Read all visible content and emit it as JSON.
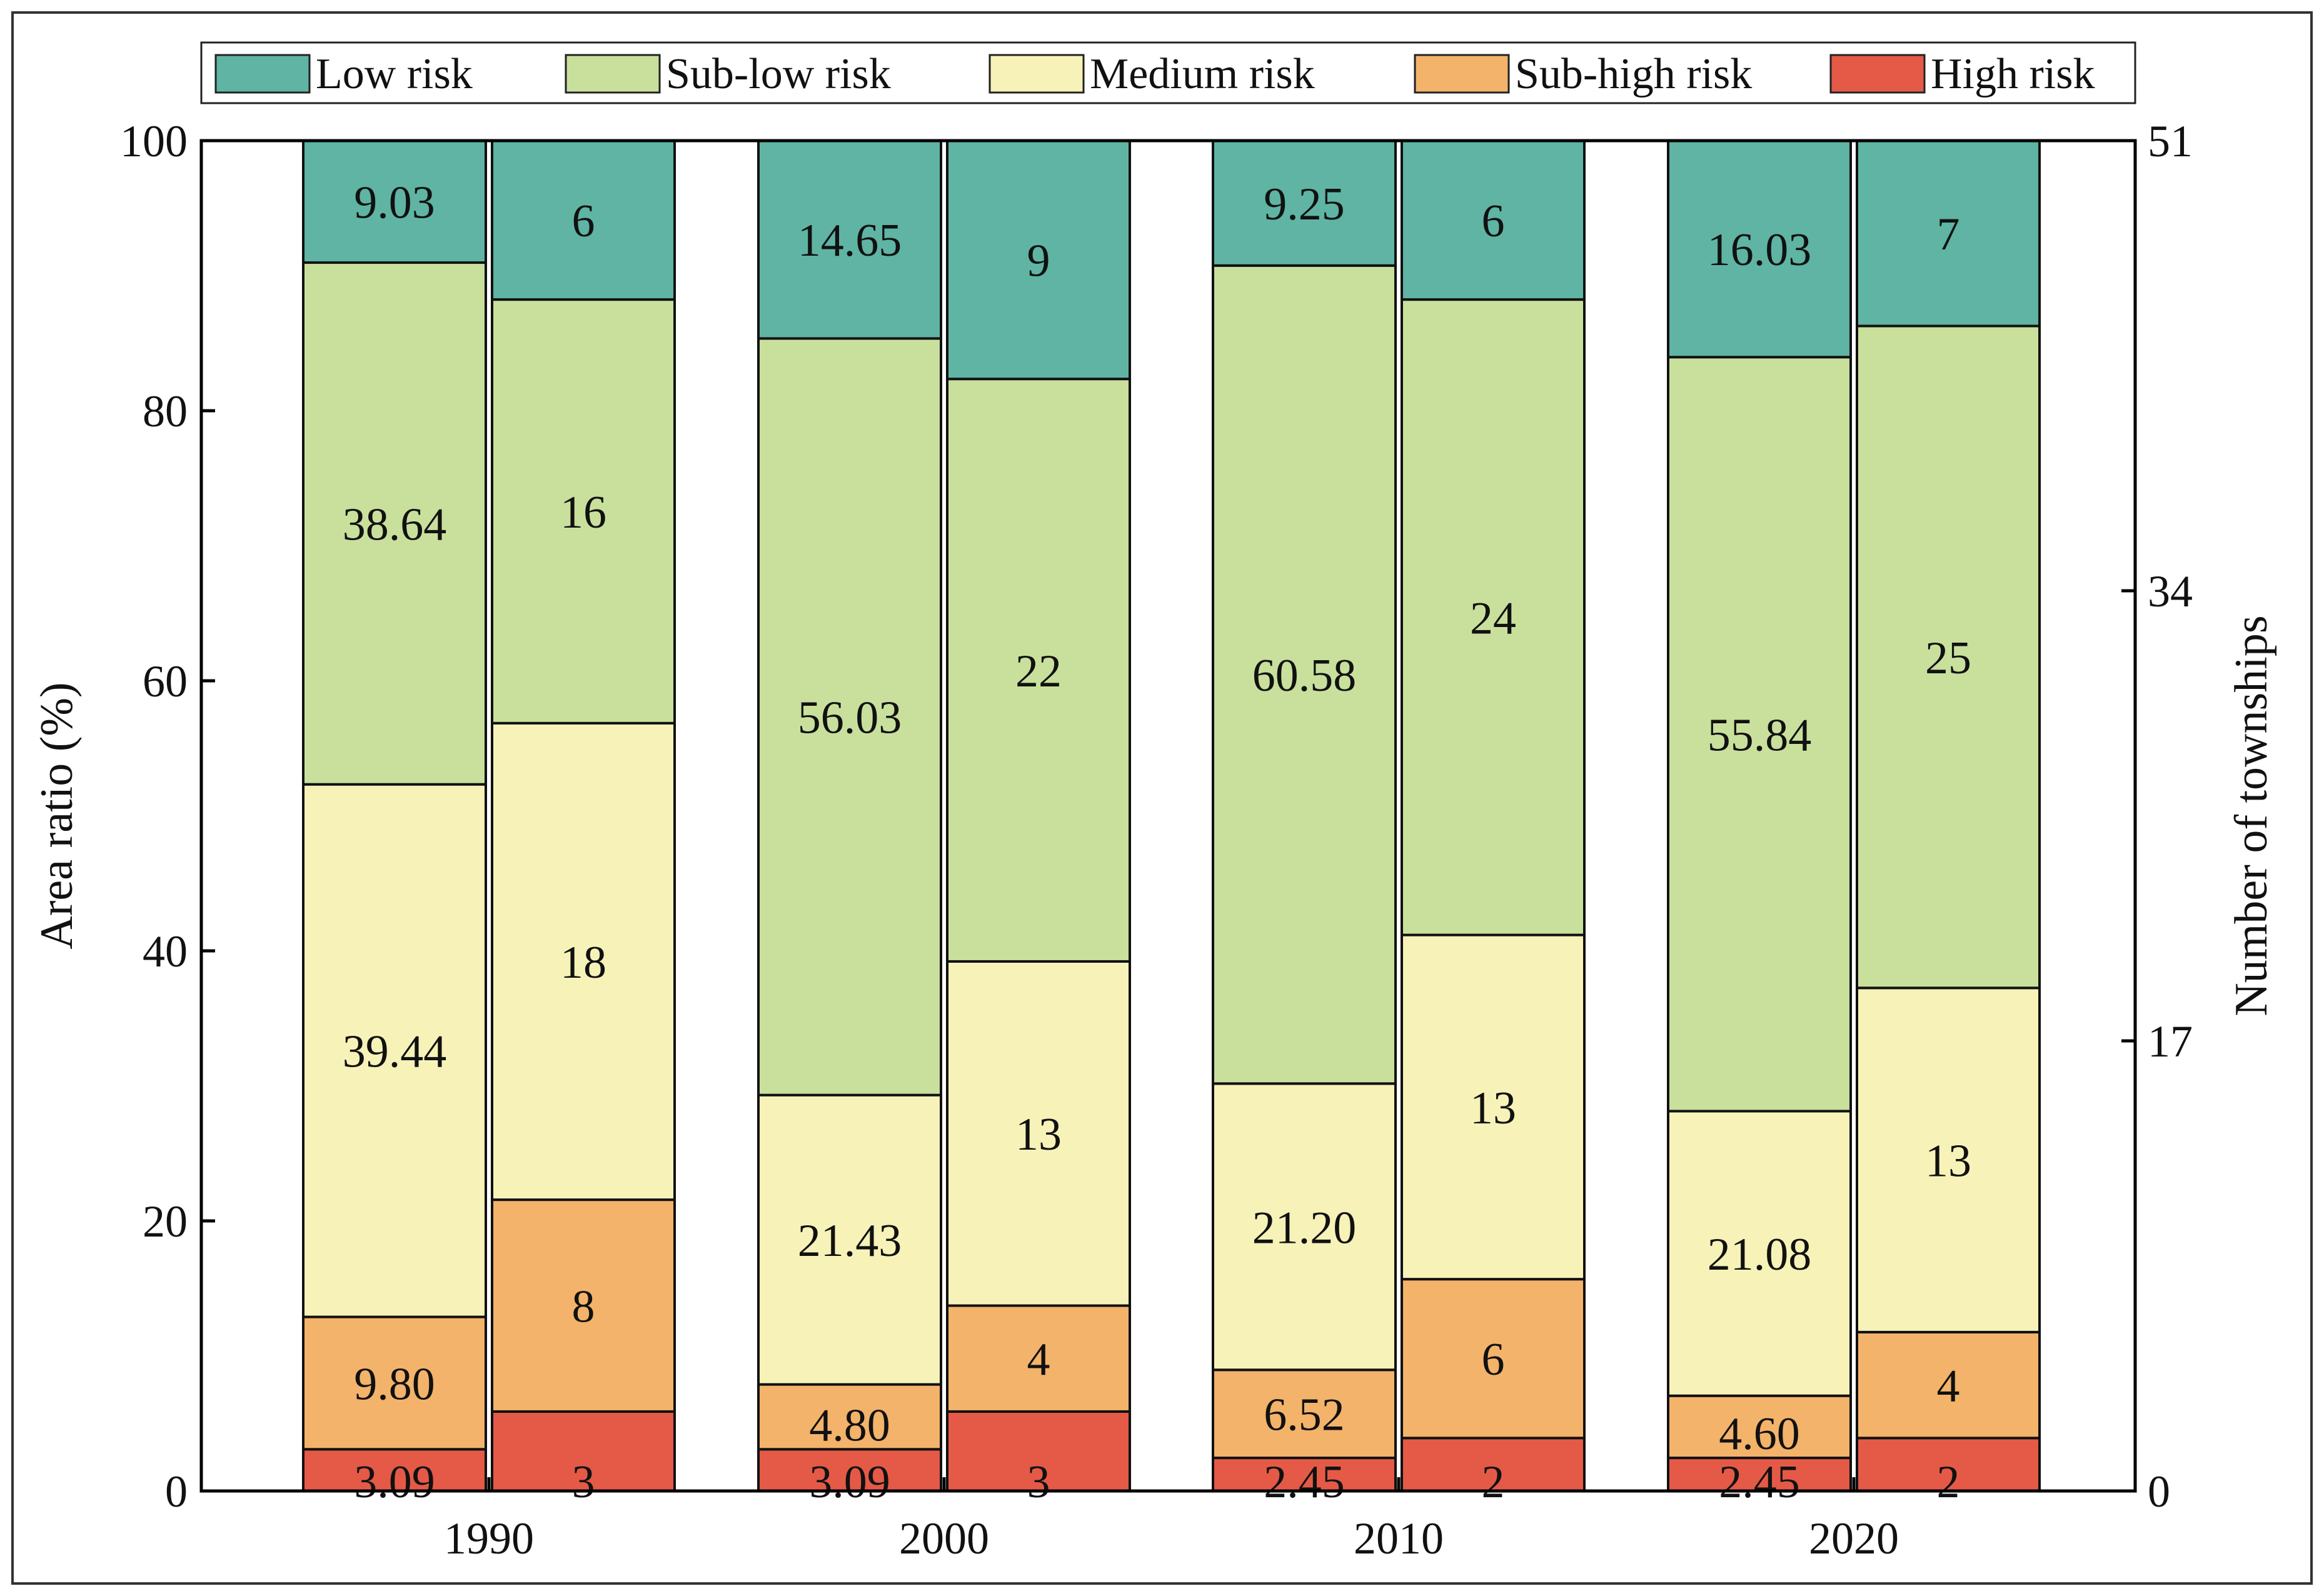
{
  "chart_data": {
    "type": "bar",
    "subtype": "stacked-100-paired",
    "categories": [
      "1990",
      "2000",
      "2010",
      "2020"
    ],
    "ylabel_left": "Area ratio (%)",
    "ylabel_right": "Number of townships",
    "ylim_left": [
      0,
      100
    ],
    "yticks_left": [
      "0",
      "20",
      "40",
      "60",
      "80",
      "100"
    ],
    "ylim_right": [
      0,
      51
    ],
    "yticks_right": [
      "0",
      "17",
      "34",
      "51"
    ],
    "legend_position": "top",
    "stack_order": [
      "High risk",
      "Sub-high risk",
      "Medium risk",
      "Sub-low risk",
      "Low risk"
    ],
    "legend": [
      {
        "name": "Low risk",
        "color": "#5fb4a3"
      },
      {
        "name": "Sub-low risk",
        "color": "#c9e09d"
      },
      {
        "name": "Medium risk",
        "color": "#f7f2b8"
      },
      {
        "name": "Sub-high risk",
        "color": "#f3b36a"
      },
      {
        "name": "High risk",
        "color": "#e45a47"
      }
    ],
    "area_ratio": [
      {
        "category": "1990",
        "values": [
          "3.09",
          "9.80",
          "39.44",
          "38.64",
          "9.03"
        ]
      },
      {
        "category": "2000",
        "values": [
          "3.09",
          "4.80",
          "21.43",
          "56.03",
          "14.65"
        ]
      },
      {
        "category": "2010",
        "values": [
          "2.45",
          "6.52",
          "21.20",
          "60.58",
          "9.25"
        ]
      },
      {
        "category": "2020",
        "values": [
          "2.45",
          "4.60",
          "21.08",
          "55.84",
          "16.03"
        ]
      }
    ],
    "townships": [
      {
        "category": "1990",
        "values": [
          3,
          8,
          18,
          16,
          6
        ]
      },
      {
        "category": "2000",
        "values": [
          3,
          4,
          13,
          22,
          9
        ]
      },
      {
        "category": "2010",
        "values": [
          2,
          6,
          13,
          24,
          6
        ]
      },
      {
        "category": "2020",
        "values": [
          2,
          4,
          13,
          25,
          7
        ]
      }
    ]
  }
}
